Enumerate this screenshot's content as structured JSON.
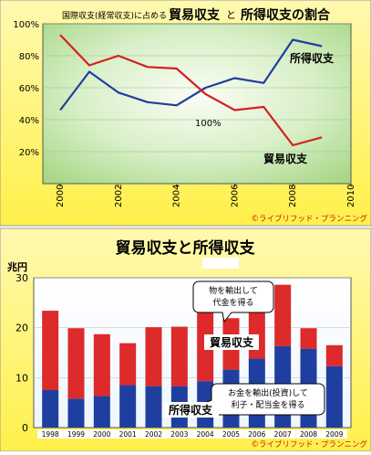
{
  "chart_data": [
    {
      "type": "line",
      "title": "国際収支(経常収支)に占める 貿易収支 と 所得収支の割合",
      "title_small": "国際収支(経常収支)に占める",
      "title_big1": "貿易収支",
      "title_mid": "と",
      "title_big2": "所得収支の割合",
      "x_ticks": [
        "2000",
        "2002",
        "2004",
        "2006",
        "2008",
        "2010"
      ],
      "y_ticks": [
        "100%",
        "80%",
        "60%",
        "40%",
        "20%"
      ],
      "xlim": [
        1999.4,
        2010
      ],
      "ylim": [
        0,
        100
      ],
      "x": [
        2000,
        2001,
        2002,
        2003,
        2004,
        2005,
        2006,
        2007,
        2008,
        2009
      ],
      "series": [
        {
          "name": "所得収支",
          "color": "#1f3fa0",
          "values": [
            46,
            70,
            57,
            51,
            49,
            60,
            66,
            63,
            90,
            86
          ]
        },
        {
          "name": "貿易収支",
          "color": "#d42020",
          "values": [
            93,
            74,
            80,
            73,
            72,
            56,
            46,
            48,
            24,
            29
          ]
        }
      ],
      "annotation": "100%",
      "credit": "©ライブリフッド・プランニング"
    },
    {
      "type": "bar",
      "title": "貿易収支と所得収支",
      "ylabel": "兆円",
      "y_ticks": [
        "30",
        "20",
        "10",
        "0"
      ],
      "ylim": [
        0,
        30
      ],
      "categories": [
        "1998",
        "1999",
        "2000",
        "2001",
        "2002",
        "2003",
        "2004",
        "2005",
        "2006",
        "2007",
        "2008",
        "2009"
      ],
      "series": [
        {
          "name": "所得収支",
          "color": "#1f3fa0",
          "values": [
            7.5,
            5.8,
            6.3,
            8.5,
            8.3,
            8.3,
            9.3,
            11.6,
            13.8,
            16.3,
            15.8,
            12.3
          ]
        },
        {
          "name": "貿易収支",
          "color": "#dd2a2a",
          "values": [
            15.9,
            14.1,
            12.4,
            8.4,
            11.8,
            11.9,
            14.0,
            10.3,
            9.5,
            12.3,
            4.1,
            4.2
          ]
        }
      ],
      "callout_top": [
        "物を輸出して",
        "代金を得る"
      ],
      "callout_bottom": [
        "お金を輸出(投資)して",
        "利子・配当金を得る"
      ],
      "label_trade": "貿易収支",
      "label_income": "所得収支",
      "credit": "©ライブリフッド・プランニング"
    }
  ]
}
